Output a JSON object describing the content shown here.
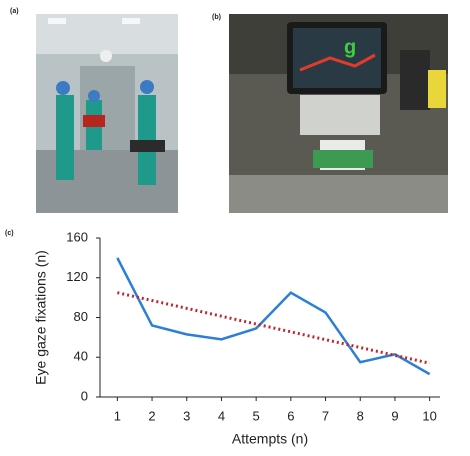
{
  "panel_labels": [
    "(a)",
    "(b)",
    "(c)"
  ],
  "chart_data": {
    "type": "line",
    "x_label": "Attempts (n)",
    "y_label": "Eye gaze fixations (n)",
    "x": [
      1,
      2,
      3,
      4,
      5,
      6,
      7,
      8,
      9,
      10
    ],
    "series": [
      {
        "color": "#2b7fd6",
        "style": "solid",
        "values": [
          140,
          72,
          63,
          58,
          69,
          105,
          85,
          35,
          43,
          23
        ]
      },
      {
        "color": "#c0272d",
        "style": "dotted",
        "values": [
          105,
          97.1,
          89.2,
          81.3,
          73.4,
          65.6,
          57.7,
          49.8,
          41.9,
          34
        ]
      }
    ],
    "xlim": [
      0.5,
      10.5
    ],
    "xticks": [
      1,
      2,
      3,
      4,
      5,
      6,
      7,
      8,
      9,
      10
    ],
    "ylim": [
      0,
      160
    ],
    "yticks": [
      0,
      40,
      80,
      120,
      160
    ],
    "grid": false
  }
}
